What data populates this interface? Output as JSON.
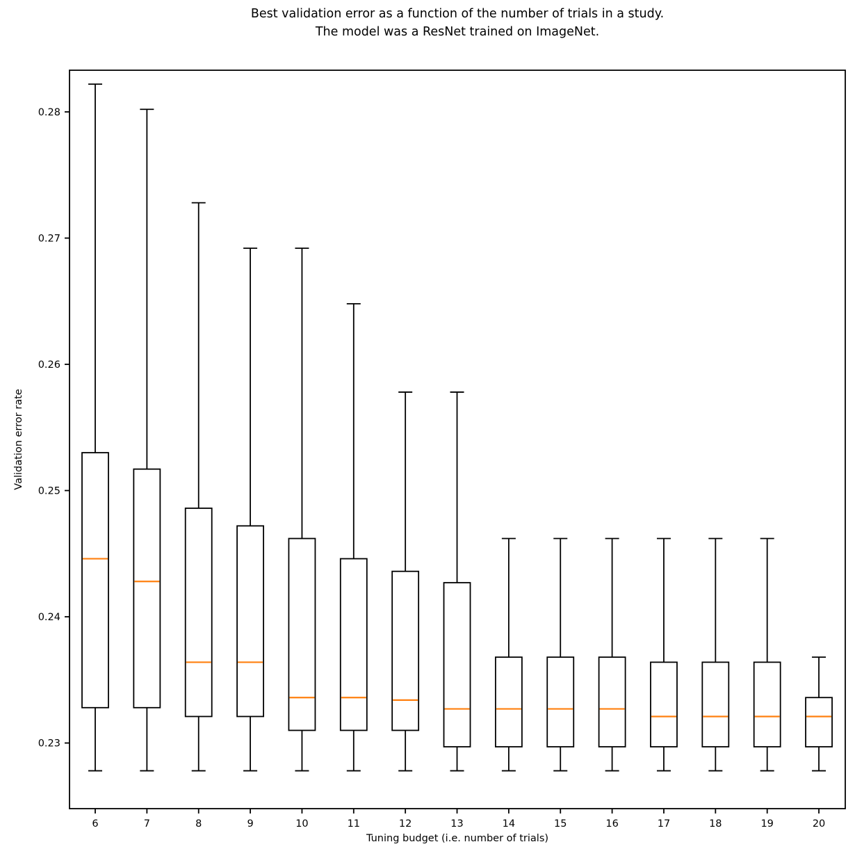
{
  "title": {
    "line1": "Best validation error as a function of the number of trials in a study.",
    "line2": "The model was a ResNet trained on ImageNet."
  },
  "axes": {
    "xlabel": "Tuning budget (i.e. number of trials)",
    "ylabel": "Validation error rate"
  },
  "chart_data": {
    "type": "boxplot",
    "title": "Best validation error as a function of the number of trials in a study.\nThe model was a ResNet trained on ImageNet.",
    "xlabel": "Tuning budget (i.e. number of trials)",
    "ylabel": "Validation error rate",
    "categories": [
      "6",
      "7",
      "8",
      "9",
      "10",
      "11",
      "12",
      "13",
      "14",
      "15",
      "16",
      "17",
      "18",
      "19",
      "20"
    ],
    "boxes": [
      {
        "category": "6",
        "whislo": 0.2278,
        "q1": 0.2328,
        "med": 0.2446,
        "q3": 0.253,
        "whishi": 0.2822
      },
      {
        "category": "7",
        "whislo": 0.2278,
        "q1": 0.2328,
        "med": 0.2428,
        "q3": 0.2517,
        "whishi": 0.2802
      },
      {
        "category": "8",
        "whislo": 0.2278,
        "q1": 0.2321,
        "med": 0.2364,
        "q3": 0.2486,
        "whishi": 0.2728
      },
      {
        "category": "9",
        "whislo": 0.2278,
        "q1": 0.2321,
        "med": 0.2364,
        "q3": 0.2472,
        "whishi": 0.2692
      },
      {
        "category": "10",
        "whislo": 0.2278,
        "q1": 0.231,
        "med": 0.2336,
        "q3": 0.2462,
        "whishi": 0.2692
      },
      {
        "category": "11",
        "whislo": 0.2278,
        "q1": 0.231,
        "med": 0.2336,
        "q3": 0.2446,
        "whishi": 0.2648
      },
      {
        "category": "12",
        "whislo": 0.2278,
        "q1": 0.231,
        "med": 0.2334,
        "q3": 0.2436,
        "whishi": 0.2578
      },
      {
        "category": "13",
        "whislo": 0.2278,
        "q1": 0.2297,
        "med": 0.2327,
        "q3": 0.2427,
        "whishi": 0.2578
      },
      {
        "category": "14",
        "whislo": 0.2278,
        "q1": 0.2297,
        "med": 0.2327,
        "q3": 0.2368,
        "whishi": 0.2462
      },
      {
        "category": "15",
        "whislo": 0.2278,
        "q1": 0.2297,
        "med": 0.2327,
        "q3": 0.2368,
        "whishi": 0.2462
      },
      {
        "category": "16",
        "whislo": 0.2278,
        "q1": 0.2297,
        "med": 0.2327,
        "q3": 0.2368,
        "whishi": 0.2462
      },
      {
        "category": "17",
        "whislo": 0.2278,
        "q1": 0.2297,
        "med": 0.2321,
        "q3": 0.2364,
        "whishi": 0.2462
      },
      {
        "category": "18",
        "whislo": 0.2278,
        "q1": 0.2297,
        "med": 0.2321,
        "q3": 0.2364,
        "whishi": 0.2462
      },
      {
        "category": "19",
        "whislo": 0.2278,
        "q1": 0.2297,
        "med": 0.2321,
        "q3": 0.2364,
        "whishi": 0.2462
      },
      {
        "category": "20",
        "whislo": 0.2278,
        "q1": 0.2297,
        "med": 0.2321,
        "q3": 0.2336,
        "whishi": 0.2368
      }
    ],
    "yticks": [
      {
        "value": 0.23,
        "label": "0.23"
      },
      {
        "value": 0.24,
        "label": "0.24"
      },
      {
        "value": 0.25,
        "label": "0.25"
      },
      {
        "value": 0.26,
        "label": "0.26"
      },
      {
        "value": 0.27,
        "label": "0.27"
      },
      {
        "value": 0.28,
        "label": "0.28"
      }
    ],
    "ylim": [
      0.2248,
      0.2833
    ],
    "grid": false,
    "legend": "none",
    "colors": {
      "box_stroke": "#000000",
      "median": "#ff7f0e",
      "text": "#000000",
      "background": "#ffffff"
    }
  }
}
